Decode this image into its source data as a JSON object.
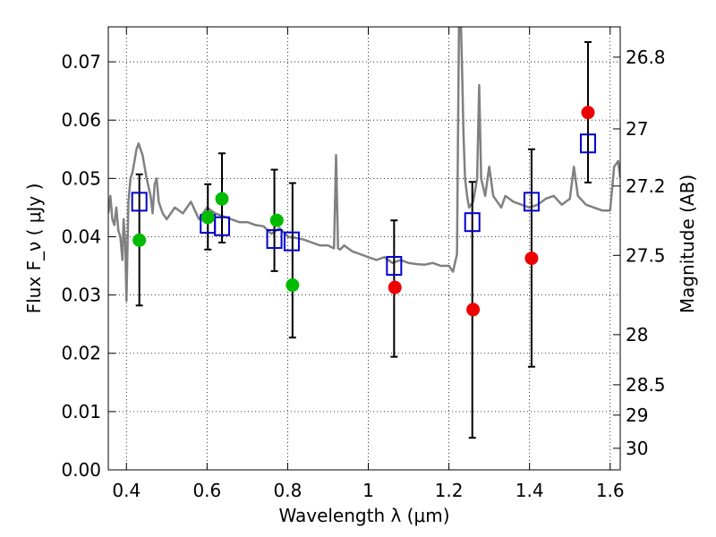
{
  "chart_data": {
    "type": "scatter",
    "xlabel": "Wavelength  λ (μm)",
    "ylabel": "Flux  F_ν  ( μJy )",
    "ylabel_right": "Magnitude (AB)",
    "xlim": [
      0.355,
      1.625
    ],
    "ylim": [
      0.0,
      0.076
    ],
    "grid": true,
    "x_ticks": [
      0.4,
      0.6,
      0.8,
      1.0,
      1.2,
      1.4,
      1.6
    ],
    "x_tick_labels": [
      "0.4",
      "0.6",
      "0.8",
      "1",
      "1.2",
      "1.4",
      "1.6"
    ],
    "y_ticks": [
      0.0,
      0.01,
      0.02,
      0.03,
      0.04,
      0.05,
      0.06,
      0.07
    ],
    "y_tick_labels": [
      "0.00",
      "0.01",
      "0.02",
      "0.03",
      "0.04",
      "0.05",
      "0.06",
      "0.07"
    ],
    "mag_ticks": [
      {
        "label": "26.8",
        "flux": 0.0708
      },
      {
        "label": "27",
        "flux": 0.0585
      },
      {
        "label": "27.2",
        "flux": 0.0487
      },
      {
        "label": "27.5",
        "flux": 0.0368
      },
      {
        "label": "28",
        "flux": 0.0232
      },
      {
        "label": "28.5",
        "flux": 0.0146
      },
      {
        "label": "29",
        "flux": 0.0094
      },
      {
        "label": "30",
        "flux": 0.0037
      }
    ],
    "model_spectrum": {
      "color": "#808080",
      "x": [
        0.355,
        0.36,
        0.365,
        0.37,
        0.375,
        0.38,
        0.385,
        0.39,
        0.393,
        0.397,
        0.4,
        0.405,
        0.41,
        0.415,
        0.42,
        0.425,
        0.43,
        0.44,
        0.45,
        0.46,
        0.465,
        0.47,
        0.475,
        0.48,
        0.49,
        0.5,
        0.52,
        0.54,
        0.56,
        0.58,
        0.6,
        0.62,
        0.64,
        0.66,
        0.68,
        0.7,
        0.72,
        0.74,
        0.76,
        0.78,
        0.8,
        0.82,
        0.84,
        0.86,
        0.88,
        0.9,
        0.915,
        0.92,
        0.925,
        0.93,
        0.94,
        0.96,
        0.98,
        1.0,
        1.02,
        1.04,
        1.06,
        1.08,
        1.1,
        1.12,
        1.14,
        1.16,
        1.18,
        1.2,
        1.21,
        1.22,
        1.225,
        1.23,
        1.233,
        1.236,
        1.24,
        1.245,
        1.25,
        1.26,
        1.265,
        1.27,
        1.275,
        1.28,
        1.29,
        1.3,
        1.31,
        1.32,
        1.33,
        1.34,
        1.36,
        1.38,
        1.4,
        1.42,
        1.44,
        1.46,
        1.48,
        1.5,
        1.51,
        1.52,
        1.54,
        1.56,
        1.58,
        1.6,
        1.61,
        1.62,
        1.625
      ],
      "y": [
        0.044,
        0.047,
        0.043,
        0.042,
        0.045,
        0.041,
        0.04,
        0.036,
        0.043,
        0.039,
        0.029,
        0.046,
        0.05,
        0.051,
        0.053,
        0.055,
        0.056,
        0.054,
        0.05,
        0.047,
        0.044,
        0.049,
        0.05,
        0.046,
        0.044,
        0.043,
        0.045,
        0.044,
        0.046,
        0.043,
        0.045,
        0.044,
        0.0435,
        0.043,
        0.0425,
        0.0425,
        0.042,
        0.0418,
        0.0405,
        0.0415,
        0.04,
        0.0398,
        0.0395,
        0.039,
        0.0385,
        0.0385,
        0.038,
        0.054,
        0.038,
        0.0378,
        0.0385,
        0.0375,
        0.037,
        0.0365,
        0.036,
        0.0365,
        0.0355,
        0.036,
        0.0355,
        0.0353,
        0.0352,
        0.0355,
        0.035,
        0.035,
        0.034,
        0.037,
        0.076,
        0.076,
        0.068,
        0.058,
        0.05,
        0.047,
        0.045,
        0.046,
        0.048,
        0.05,
        0.066,
        0.05,
        0.047,
        0.052,
        0.047,
        0.046,
        0.045,
        0.047,
        0.046,
        0.0455,
        0.045,
        0.0455,
        0.0465,
        0.047,
        0.0455,
        0.0465,
        0.052,
        0.047,
        0.0455,
        0.045,
        0.0445,
        0.0445,
        0.052,
        0.053,
        0.05
      ]
    },
    "series": [
      {
        "marker": "open-square",
        "color": "#0000cc",
        "x": [
          0.432,
          0.602,
          0.637,
          0.767,
          0.81,
          1.064,
          1.258,
          1.405,
          1.545
        ],
        "y": [
          0.046,
          0.0422,
          0.0418,
          0.0396,
          0.0392,
          0.035,
          0.0425,
          0.046,
          0.056
        ]
      },
      {
        "marker": "filled-circle",
        "color": "#00bb00",
        "x": [
          0.432,
          0.602,
          0.637,
          0.773,
          0.812
        ],
        "y": [
          0.0394,
          0.0433,
          0.0465,
          0.0428,
          0.0317
        ]
      },
      {
        "marker": "filled-circle",
        "color": "#ee0000",
        "x": [
          1.066,
          1.26,
          1.405,
          1.545
        ],
        "y": [
          0.0313,
          0.0275,
          0.0363,
          0.0613
        ]
      }
    ],
    "error_bars": {
      "color": "#000000",
      "x": [
        0.432,
        0.602,
        0.637,
        0.767,
        0.812,
        1.064,
        1.258,
        1.405,
        1.545
      ],
      "low": [
        0.0282,
        0.0378,
        0.039,
        0.0341,
        0.0227,
        0.0194,
        0.0055,
        0.0177,
        0.0493
      ],
      "high": [
        0.0507,
        0.049,
        0.0543,
        0.0515,
        0.0492,
        0.0428,
        0.0494,
        0.055,
        0.0734
      ]
    }
  }
}
